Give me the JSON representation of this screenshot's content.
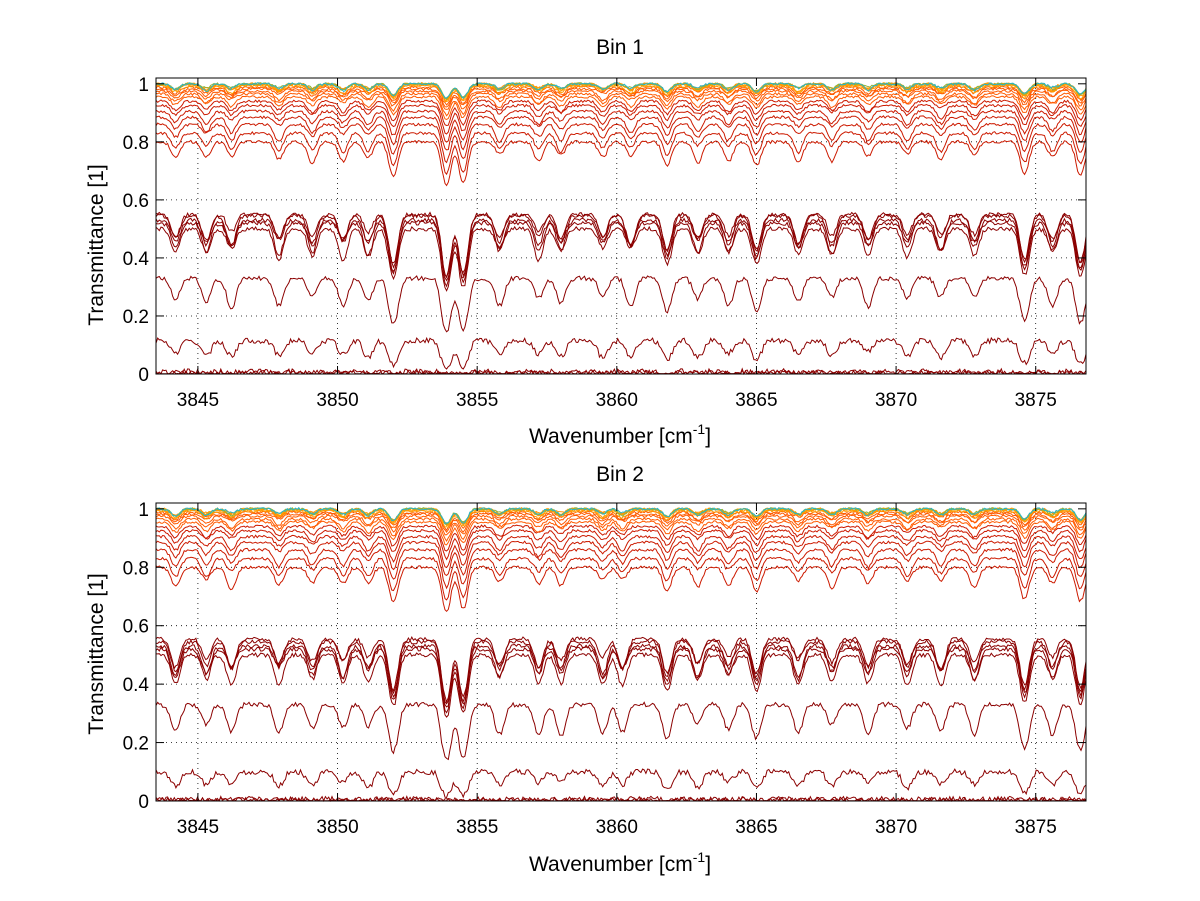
{
  "figure": {
    "colors": {
      "background": "#ffffff",
      "axes": "#000000",
      "grid": "#000000",
      "trace_dark": "#8b0000",
      "trace_mid": "#cc1a00",
      "trace_bright": "#ff5a00",
      "trace_orange": "#ff9900",
      "trace_green": "#8db33a",
      "trace_cyan": "#27b4c9"
    }
  },
  "chart_data": [
    {
      "type": "line",
      "title": "Bin 1",
      "xlabel": "Wavenumber [cm",
      "xlabel_sup": "-1",
      "xlabel_tail": "]",
      "ylabel": "Transmittance [1]",
      "xlim": [
        3843.5,
        3876.8
      ],
      "ylim": [
        0,
        1.02
      ],
      "xticks": [
        3845,
        3850,
        3855,
        3860,
        3865,
        3870,
        3875
      ],
      "xtick_labels": [
        "3845",
        "3850",
        "3855",
        "3860",
        "3865",
        "3870",
        "3875"
      ],
      "yticks": [
        0,
        0.2,
        0.4,
        0.6,
        0.8,
        1
      ],
      "ytick_labels": [
        "0",
        "0.2",
        "0.4",
        "0.6",
        "0.8",
        "1"
      ],
      "grid": true,
      "absorption_lines_cm-1": [
        3844.2,
        3845.3,
        3846.2,
        3847.9,
        3849.1,
        3850.2,
        3851.1,
        3852.0,
        3853.9,
        3854.5,
        3855.8,
        3857.2,
        3858.0,
        3859.5,
        3860.5,
        3861.8,
        3862.9,
        3864.0,
        3865.0,
        3866.5,
        3867.7,
        3869.0,
        3870.4,
        3871.6,
        3872.8,
        3874.6,
        3875.6,
        3876.6
      ],
      "series_baselines": [
        0.003,
        0.008,
        0.115,
        0.33,
        0.5,
        0.52,
        0.53,
        0.545,
        0.55,
        0.8,
        0.83,
        0.86,
        0.885,
        0.905,
        0.925,
        0.94,
        0.955,
        0.965,
        0.975,
        0.982,
        0.988,
        0.992,
        0.996,
        0.998,
        0.999,
        1.0,
        1.0,
        1.0
      ]
    },
    {
      "type": "line",
      "title": "Bin 2",
      "xlabel": "Wavenumber [cm",
      "xlabel_sup": "-1",
      "xlabel_tail": "]",
      "ylabel": "Transmittance [1]",
      "xlim": [
        3843.5,
        3876.8
      ],
      "ylim": [
        0,
        1.02
      ],
      "xticks": [
        3845,
        3850,
        3855,
        3860,
        3865,
        3870,
        3875
      ],
      "xtick_labels": [
        "3845",
        "3850",
        "3855",
        "3860",
        "3865",
        "3870",
        "3875"
      ],
      "yticks": [
        0,
        0.2,
        0.4,
        0.6,
        0.8,
        1
      ],
      "ytick_labels": [
        "0",
        "0.2",
        "0.4",
        "0.6",
        "0.8",
        "1"
      ],
      "grid": true,
      "absorption_lines_cm-1": [
        3844.2,
        3845.3,
        3846.2,
        3847.9,
        3849.1,
        3850.2,
        3851.1,
        3852.0,
        3853.9,
        3854.5,
        3855.8,
        3857.2,
        3858.0,
        3859.5,
        3860.2,
        3861.8,
        3862.9,
        3864.0,
        3865.0,
        3866.5,
        3867.7,
        3869.0,
        3870.4,
        3871.6,
        3872.8,
        3874.6,
        3875.6,
        3876.6
      ],
      "series_baselines": [
        0.003,
        0.006,
        0.1,
        0.33,
        0.5,
        0.52,
        0.53,
        0.545,
        0.555,
        0.8,
        0.83,
        0.86,
        0.885,
        0.905,
        0.925,
        0.94,
        0.955,
        0.965,
        0.975,
        0.982,
        0.988,
        0.992,
        0.996,
        0.998,
        0.999,
        1.0,
        1.0,
        1.0
      ]
    }
  ]
}
